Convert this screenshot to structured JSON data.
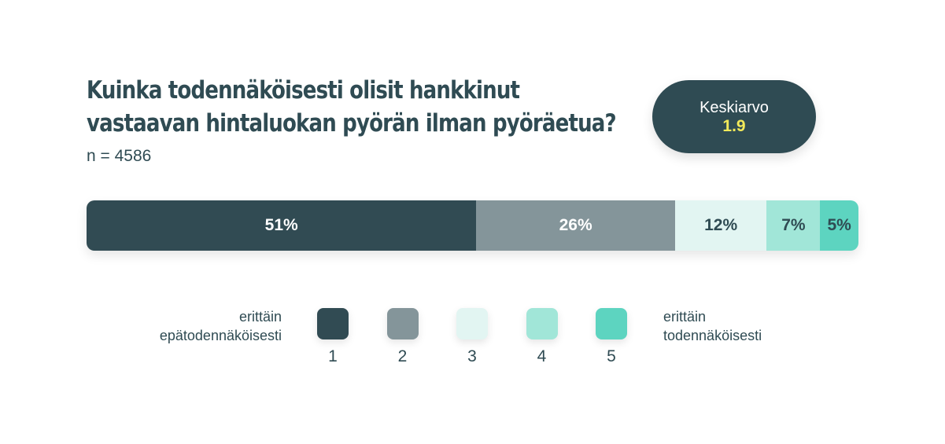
{
  "chart_data": {
    "type": "bar",
    "stacked": true,
    "orientation": "horizontal",
    "title_lines": [
      "Kuinka todennäköisesti olisit hankkinut",
      "vastaavan hintaluokan pyörän ilman pyöräetua?"
    ],
    "subtitle": "n = 4586",
    "average": {
      "label": "Keskiarvo",
      "value": "1.9"
    },
    "categories": [
      "1",
      "2",
      "3",
      "4",
      "5"
    ],
    "values": [
      51,
      26,
      12,
      7,
      5
    ],
    "value_labels": [
      "51%",
      "26%",
      "12%",
      "7%",
      "5%"
    ],
    "colors": [
      "#314b53",
      "#84959a",
      "#e2f5f2",
      "#a1e6d8",
      "#5dd4c0"
    ],
    "label_colors": [
      "#ffffff",
      "#ffffff",
      "#2f4b53",
      "#2f4b53",
      "#2f4b53"
    ],
    "legend": {
      "left_label_lines": [
        "erittäin",
        "epätodennäköisesti"
      ],
      "right_label_lines": [
        "erittäin",
        "todennäköisesti"
      ],
      "items": [
        "1",
        "2",
        "3",
        "4",
        "5"
      ]
    }
  }
}
